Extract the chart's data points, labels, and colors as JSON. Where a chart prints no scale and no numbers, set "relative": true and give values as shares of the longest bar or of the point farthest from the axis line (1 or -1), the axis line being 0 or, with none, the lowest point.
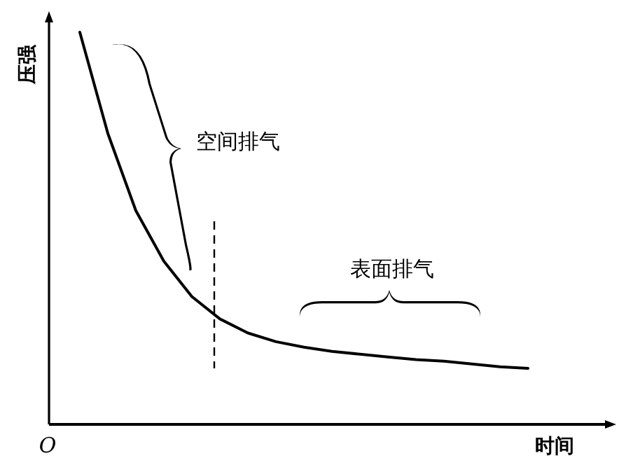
{
  "chart_data": {
    "type": "line",
    "relative": true,
    "xlabel": "时间",
    "ylabel": "压强",
    "color": "#000000",
    "line_style": "solid",
    "categories": [
      null,
      null,
      null,
      null,
      null,
      null,
      null,
      null,
      null,
      null,
      null,
      null,
      null,
      null,
      null,
      null,
      null
    ],
    "values": [
      1,
      0.742,
      0.545,
      0.416,
      0.326,
      0.269,
      0.233,
      0.211,
      0.197,
      0.186,
      0.179,
      0.172,
      0.165,
      0.161,
      0.154,
      0.147,
      0.143
    ],
    "annotations": [
      "空间排气",
      "表面排气",
      "O"
    ]
  }
}
